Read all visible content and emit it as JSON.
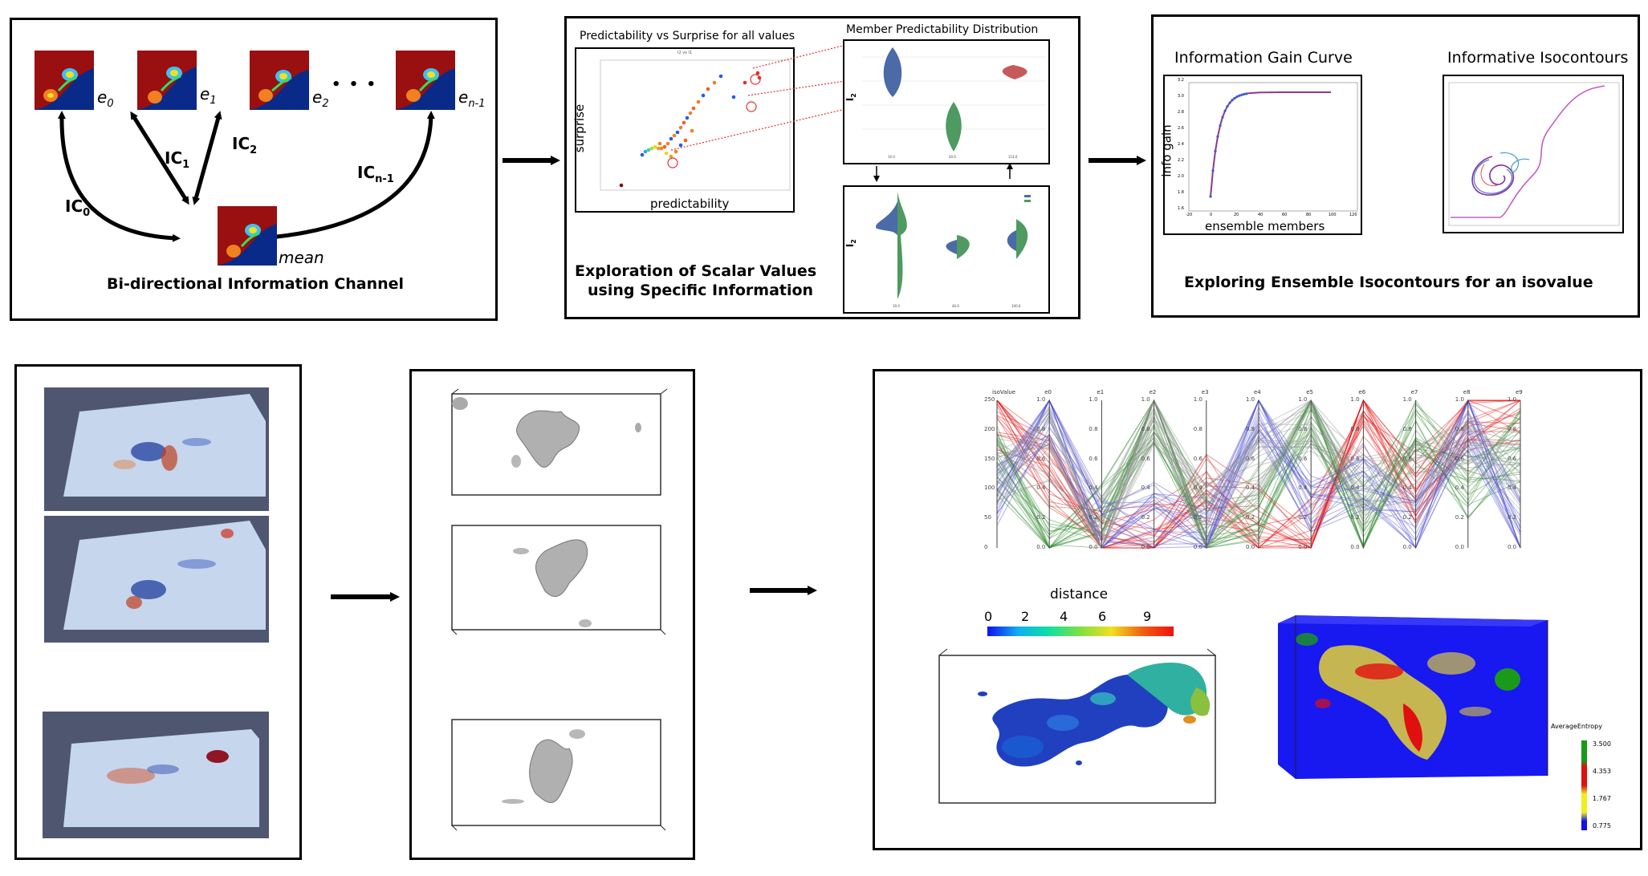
{
  "channel": {
    "members": [
      "e",
      "e",
      "e",
      "e"
    ],
    "member_subscripts": [
      "0",
      "1",
      "2",
      "n-1"
    ],
    "ellipsis": "• • •",
    "ic_main": "IC",
    "ic_subscripts": [
      "0",
      "1",
      "2",
      "n-1"
    ],
    "mean_label": "mean",
    "caption": "Bi-directional Information Channel"
  },
  "scalar": {
    "scatter_title": "Predictability vs Surprise for all values",
    "scatter_inner_title": "I2 vs I1",
    "scatter_xlabel": "predictability",
    "scatter_ylabel": "surprise",
    "violin_title": "Member Predictability Distribution",
    "violin_ylabel": "I",
    "violin_ylabel_sub": "2",
    "violin_xticks": [
      "10.0",
      "40.0",
      "114.0"
    ],
    "split_xticks": [
      "10.0",
      "40.0",
      "100.0"
    ],
    "caption_line1": "Exploration of Scalar Values",
    "caption_line2": "using Specific Information"
  },
  "isocontour": {
    "gain_title": "Information Gain Curve",
    "gain_xlabel": "ensemble members",
    "gain_ylabel": "info gain",
    "gain_yticks": [
      "3.2",
      "3.0",
      "2.8",
      "2.6",
      "2.4",
      "2.2",
      "2.0",
      "1.8",
      "1.6"
    ],
    "gain_xticks": [
      "-20",
      "0",
      "20",
      "40",
      "60",
      "80",
      "100",
      "120"
    ],
    "iso_title": "Informative Isocontours",
    "caption": "Exploring Ensemble Isocontours for an isovalue"
  },
  "parallel": {
    "axis_labels": [
      "isoValue",
      "e0",
      "e1",
      "e2",
      "e3",
      "e4",
      "e5",
      "e6",
      "e7",
      "e8",
      "e9"
    ],
    "first_axis_ticks": [
      "250",
      "200",
      "150",
      "100",
      "50",
      "0"
    ],
    "unit_ticks": [
      "1.0",
      "0.8",
      "0.6",
      "0.4",
      "0.2",
      "0.0"
    ]
  },
  "distance_legend": {
    "title": "distance",
    "ticks": [
      "0",
      "2",
      "4",
      "6",
      "9"
    ]
  },
  "entropy_legend": {
    "title": "AverageEntropy",
    "values": [
      "3.500",
      "4.353",
      "1.767",
      "0.775"
    ],
    "colors": [
      "#1a9a1a",
      "#e01010",
      "#f0f020",
      "#1010f0"
    ]
  }
}
